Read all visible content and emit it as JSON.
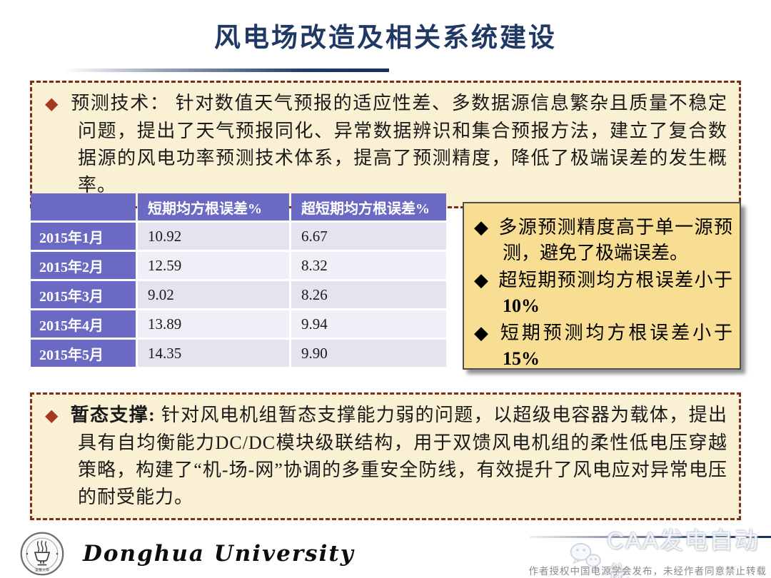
{
  "slide": {
    "title": "风电场改造及相关系统建设"
  },
  "prediction_box": {
    "bullet": "◆",
    "label": "预测技术：",
    "body": "针对数值天气预报的适应性差、多数据源信息繁杂且质量不稳定问题，提出了天气预报同化、异常数据辨识和集合预报方法，建立了复合数据源的风电功率预测技术体系，提高了预测精度，降低了极端误差的发生概率。"
  },
  "error_table": {
    "col_headers": [
      "短期均方根误差%",
      "超短期均方根误差%"
    ],
    "rows": [
      {
        "month": "2015年1月",
        "short_term": "10.92",
        "ultra_short_term": "6.67"
      },
      {
        "month": "2015年2月",
        "short_term": "12.59",
        "ultra_short_term": "8.32"
      },
      {
        "month": "2015年3月",
        "short_term": "9.02",
        "ultra_short_term": "8.26"
      },
      {
        "month": "2015年4月",
        "short_term": "13.89",
        "ultra_short_term": "9.94"
      },
      {
        "month": "2015年5月",
        "short_term": "14.35",
        "ultra_short_term": "9.90"
      }
    ]
  },
  "highlight_box": {
    "items": [
      {
        "bullet": "◆",
        "text": "多源预测精度高于单一源预测，避免了极端误差。",
        "bold": ""
      },
      {
        "bullet": "◆",
        "text": "超短期预测均方根误差小于",
        "bold": "10%"
      },
      {
        "bullet": "◆",
        "text": "短期预测均方根误差小于",
        "bold": "15%"
      }
    ]
  },
  "transient_box": {
    "bullet": "◆",
    "label": "暂态支撑:",
    "body": "针对风电机组暂态支撑能力弱的问题，以超级电容器为载体，提出具有自均衡能力DC/DC模块级联结构，用于双馈风电机组的柔性低电压穿越策略，构建了“机-场-网”协调的多重安全防线，有效提升了风电应对异常电压的耐受能力。"
  },
  "footer": {
    "university_name": "Donghua University",
    "watermark_label": "CAA发电自动化",
    "copyright_notice": "作者授权中国电源学会发布，未经作者同意禁止转载"
  },
  "colors": {
    "title_navy": "#1F3864",
    "cream_background": "#FAF0D3",
    "dashed_border_brown": "#7B3018",
    "diamond_red": "#A43A22",
    "table_purple": "#6A6AC4",
    "table_row_odd": "#E4E4F1",
    "table_row_even": "#EFEFF8",
    "highlight_yellow": "#F8DE93"
  }
}
